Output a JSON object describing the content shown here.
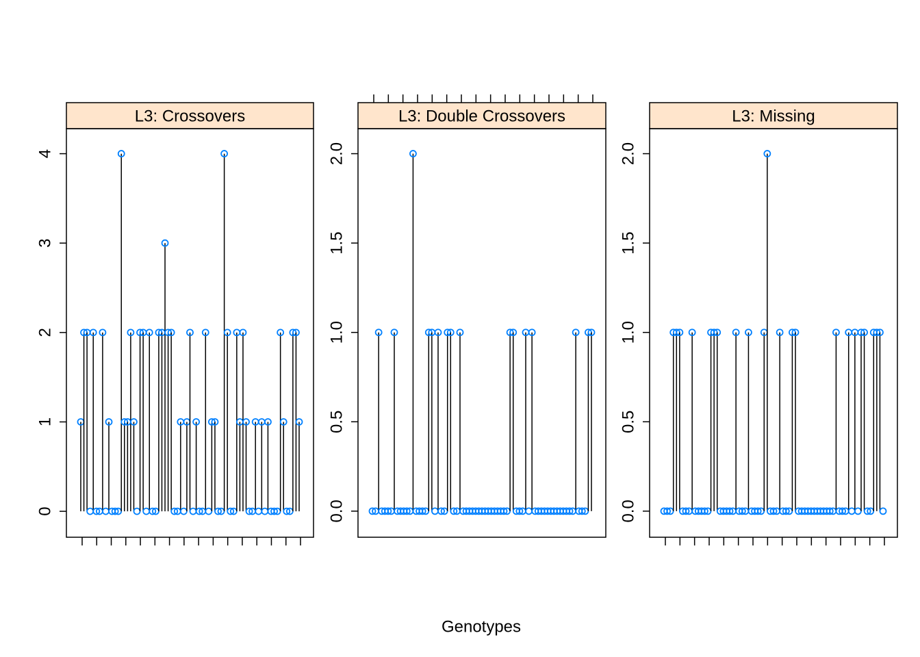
{
  "xlabel": "Genotypes",
  "chart_data": [
    {
      "type": "stem",
      "title": "L3: Crossovers",
      "color": "#0080ff",
      "ylim": [
        -0.29,
        4.28
      ],
      "yticks": [
        0,
        1,
        2,
        3,
        4
      ],
      "values": [
        1,
        2,
        2,
        0,
        2,
        0,
        0,
        2,
        0,
        1,
        0,
        0,
        0,
        4,
        1,
        1,
        2,
        1,
        0,
        2,
        2,
        0,
        2,
        0,
        0,
        2,
        2,
        3,
        2,
        2,
        0,
        0,
        1,
        0,
        1,
        2,
        0,
        1,
        0,
        0,
        2,
        0,
        1,
        1,
        0,
        0,
        4,
        2,
        0,
        0,
        2,
        1,
        2,
        1,
        0,
        0,
        1,
        0,
        1,
        0,
        1,
        0,
        0,
        0,
        2,
        1,
        0,
        0,
        2,
        2,
        1
      ]
    },
    {
      "type": "stem",
      "title": "L3: Double Crossovers",
      "color": "#0080ff",
      "ylim": [
        -0.146,
        2.14
      ],
      "yticks": [
        {
          "value": 0,
          "label": "0.0"
        },
        0.5,
        {
          "value": 1,
          "label": "1.0"
        },
        1.5,
        {
          "value": 2,
          "label": "2.0"
        }
      ],
      "values": [
        0,
        0,
        1,
        0,
        0,
        0,
        0,
        1,
        0,
        0,
        0,
        0,
        0,
        2,
        0,
        0,
        0,
        0,
        1,
        1,
        0,
        1,
        0,
        0,
        1,
        1,
        0,
        0,
        1,
        0,
        0,
        0,
        0,
        0,
        0,
        0,
        0,
        0,
        0,
        0,
        0,
        0,
        0,
        0,
        1,
        1,
        0,
        0,
        0,
        1,
        0,
        1,
        0,
        0,
        0,
        0,
        0,
        0,
        0,
        0,
        0,
        0,
        0,
        0,
        0,
        1,
        0,
        0,
        0,
        1,
        1
      ]
    },
    {
      "type": "stem",
      "title": "L3: Missing",
      "color": "#0080ff",
      "ylim": [
        -0.146,
        2.14
      ],
      "yticks": [
        {
          "value": 0,
          "label": "0.0"
        },
        0.5,
        {
          "value": 1,
          "label": "1.0"
        },
        1.5,
        {
          "value": 2,
          "label": "2.0"
        }
      ],
      "values": [
        0,
        0,
        0,
        1,
        1,
        1,
        0,
        0,
        0,
        1,
        0,
        0,
        0,
        0,
        0,
        1,
        1,
        1,
        0,
        0,
        0,
        0,
        0,
        1,
        0,
        0,
        0,
        1,
        0,
        0,
        0,
        0,
        1,
        2,
        0,
        0,
        0,
        1,
        0,
        0,
        0,
        1,
        1,
        0,
        0,
        0,
        0,
        0,
        0,
        0,
        0,
        0,
        0,
        0,
        0,
        1,
        0,
        0,
        0,
        1,
        0,
        1,
        0,
        1,
        1,
        0,
        0,
        1,
        1,
        1,
        0
      ]
    }
  ]
}
